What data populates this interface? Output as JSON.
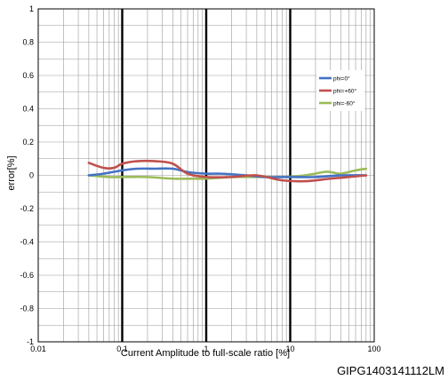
{
  "chart_data": {
    "type": "line",
    "title": "",
    "xlabel": "Current Amplitude to full-scale ratio [%]",
    "ylabel": "error[%]",
    "x_scale": "log",
    "xlim": [
      0.01,
      100
    ],
    "ylim": [
      -1,
      1
    ],
    "x_ticks": [
      "0.01",
      "0.1",
      "1",
      "10",
      "100"
    ],
    "y_ticks": [
      "1",
      "0.8",
      "0.6",
      "0.4",
      "0.2",
      "0",
      "-0.2",
      "-0.4",
      "-0.6",
      "-0.8",
      "-1"
    ],
    "grid": true,
    "legend_position": "right",
    "series": [
      {
        "name": "phi=0°",
        "color": "#4472c4",
        "x": [
          0.04,
          0.06,
          0.1,
          0.15,
          0.25,
          0.4,
          0.6,
          1,
          1.5,
          3,
          5,
          10,
          20,
          40,
          80
        ],
        "y": [
          0.0,
          0.01,
          0.03,
          0.04,
          0.04,
          0.04,
          0.02,
          0.01,
          0.01,
          0.0,
          -0.01,
          -0.01,
          -0.01,
          0.0,
          0.0
        ]
      },
      {
        "name": "phi=+60°",
        "color": "#c0504d",
        "x": [
          0.04,
          0.06,
          0.08,
          0.1,
          0.15,
          0.25,
          0.4,
          0.6,
          1,
          2,
          4,
          8,
          15,
          30,
          50,
          80
        ],
        "y": [
          0.075,
          0.045,
          0.045,
          0.07,
          0.085,
          0.085,
          0.07,
          0.01,
          -0.01,
          -0.01,
          0.0,
          -0.03,
          -0.035,
          -0.02,
          -0.01,
          0.0
        ]
      },
      {
        "name": "phi=-60°",
        "color": "#9bbb59",
        "x": [
          0.04,
          0.07,
          0.1,
          0.2,
          0.4,
          0.7,
          1,
          2,
          4,
          8,
          15,
          25,
          30,
          40,
          60,
          80
        ],
        "y": [
          0.0,
          -0.01,
          -0.01,
          -0.01,
          -0.02,
          -0.02,
          -0.02,
          -0.01,
          -0.01,
          -0.01,
          0.0,
          0.02,
          0.02,
          0.01,
          0.03,
          0.04
        ]
      }
    ]
  },
  "footer_code": "GIPG1403141112LM"
}
